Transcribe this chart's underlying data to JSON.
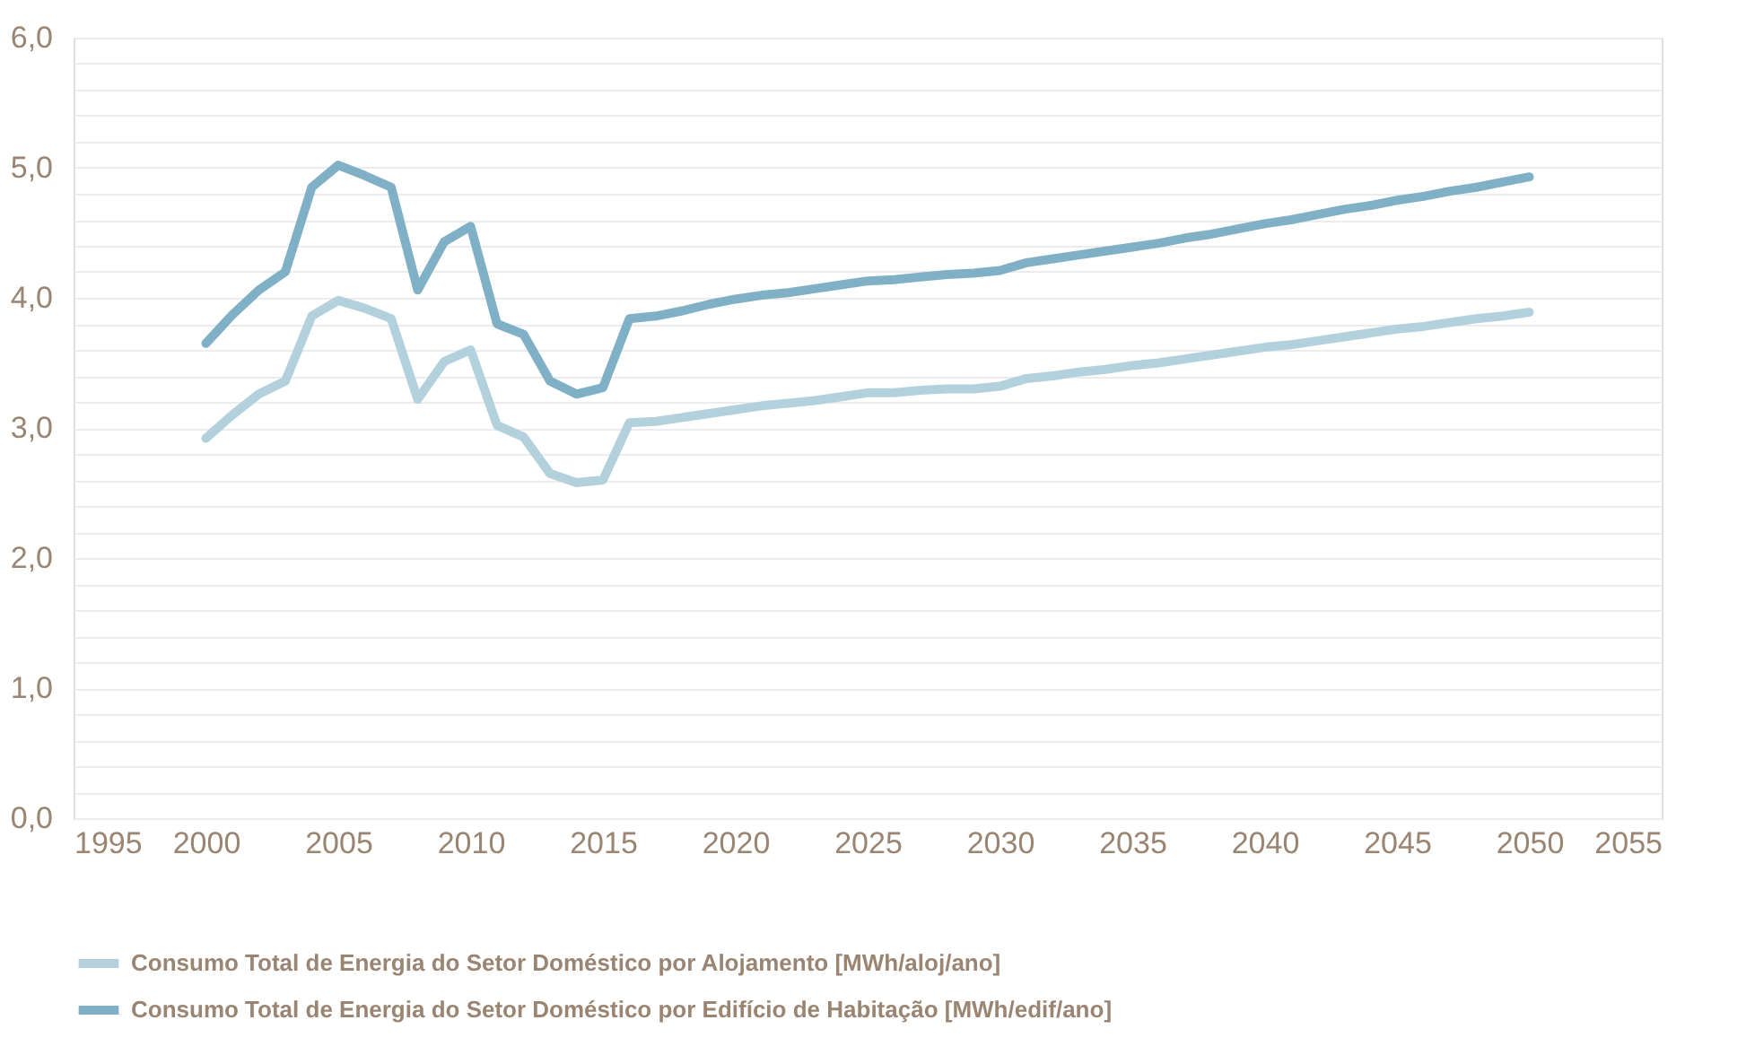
{
  "chart_data": {
    "type": "line",
    "x": [
      2000,
      2001,
      2002,
      2003,
      2004,
      2005,
      2006,
      2007,
      2008,
      2009,
      2010,
      2011,
      2012,
      2013,
      2014,
      2015,
      2016,
      2017,
      2018,
      2019,
      2020,
      2021,
      2022,
      2023,
      2024,
      2025,
      2026,
      2027,
      2028,
      2029,
      2030,
      2031,
      2032,
      2033,
      2034,
      2035,
      2036,
      2037,
      2038,
      2039,
      2040,
      2041,
      2042,
      2043,
      2044,
      2045,
      2046,
      2047,
      2048,
      2049,
      2050
    ],
    "series": [
      {
        "name": "Consumo Total de Energia do Setor Doméstico por Alojamento [MWh/aloj/ano]",
        "color": "#b3d1dc",
        "values": [
          2.92,
          3.1,
          3.26,
          3.36,
          3.86,
          3.98,
          3.92,
          3.84,
          3.22,
          3.51,
          3.6,
          3.02,
          2.93,
          2.65,
          2.58,
          2.6,
          3.04,
          3.05,
          3.08,
          3.11,
          3.14,
          3.17,
          3.19,
          3.21,
          3.24,
          3.27,
          3.27,
          3.29,
          3.3,
          3.3,
          3.32,
          3.38,
          3.4,
          3.43,
          3.45,
          3.48,
          3.5,
          3.53,
          3.56,
          3.59,
          3.62,
          3.64,
          3.67,
          3.7,
          3.73,
          3.76,
          3.78,
          3.81,
          3.84,
          3.86,
          3.89
        ]
      },
      {
        "name": "Consumo Total de Energia do Setor Doméstico por Edifício de Habitação [MWh/edif/ano]",
        "color": "#7fb0c6",
        "values": [
          3.65,
          3.87,
          4.06,
          4.2,
          4.85,
          5.02,
          4.94,
          4.85,
          4.06,
          4.43,
          4.55,
          3.8,
          3.72,
          3.36,
          3.26,
          3.31,
          3.84,
          3.86,
          3.9,
          3.95,
          3.99,
          4.02,
          4.04,
          4.07,
          4.1,
          4.13,
          4.14,
          4.16,
          4.18,
          4.19,
          4.21,
          4.27,
          4.3,
          4.33,
          4.36,
          4.39,
          4.42,
          4.46,
          4.49,
          4.53,
          4.57,
          4.6,
          4.64,
          4.68,
          4.71,
          4.75,
          4.78,
          4.82,
          4.85,
          4.89,
          4.93
        ]
      }
    ],
    "xlim": [
      1995,
      2055
    ],
    "xticks": [
      1995,
      2000,
      2005,
      2010,
      2015,
      2020,
      2025,
      2030,
      2035,
      2040,
      2045,
      2050,
      2055
    ],
    "ylim": [
      0,
      6
    ],
    "yticks": [
      {
        "value": 0,
        "label": "0,0"
      },
      {
        "value": 0.2,
        "label": null
      },
      {
        "value": 0.4,
        "label": null
      },
      {
        "value": 0.6,
        "label": null
      },
      {
        "value": 0.8,
        "label": null
      },
      {
        "value": 1,
        "label": "1,0"
      },
      {
        "value": 1.2,
        "label": null
      },
      {
        "value": 1.4,
        "label": null
      },
      {
        "value": 1.6,
        "label": null
      },
      {
        "value": 1.8,
        "label": null
      },
      {
        "value": 2,
        "label": "2,0"
      },
      {
        "value": 2.2,
        "label": null
      },
      {
        "value": 2.4,
        "label": null
      },
      {
        "value": 2.6,
        "label": null
      },
      {
        "value": 2.8,
        "label": null
      },
      {
        "value": 3,
        "label": "3,0"
      },
      {
        "value": 3.2,
        "label": null
      },
      {
        "value": 3.4,
        "label": null
      },
      {
        "value": 3.6,
        "label": null
      },
      {
        "value": 3.8,
        "label": null
      },
      {
        "value": 4,
        "label": "4,0"
      },
      {
        "value": 4.2,
        "label": null
      },
      {
        "value": 4.4,
        "label": null
      },
      {
        "value": 4.6,
        "label": null
      },
      {
        "value": 4.8,
        "label": null
      },
      {
        "value": 5,
        "label": "5,0"
      },
      {
        "value": 5.2,
        "label": null
      },
      {
        "value": 5.4,
        "label": null
      },
      {
        "value": 5.6,
        "label": null
      },
      {
        "value": 5.8,
        "label": null
      },
      {
        "value": 6,
        "label": "6,0"
      }
    ],
    "grid": "y",
    "legend": "bottom left",
    "marker": "none",
    "line_style": "solid"
  }
}
